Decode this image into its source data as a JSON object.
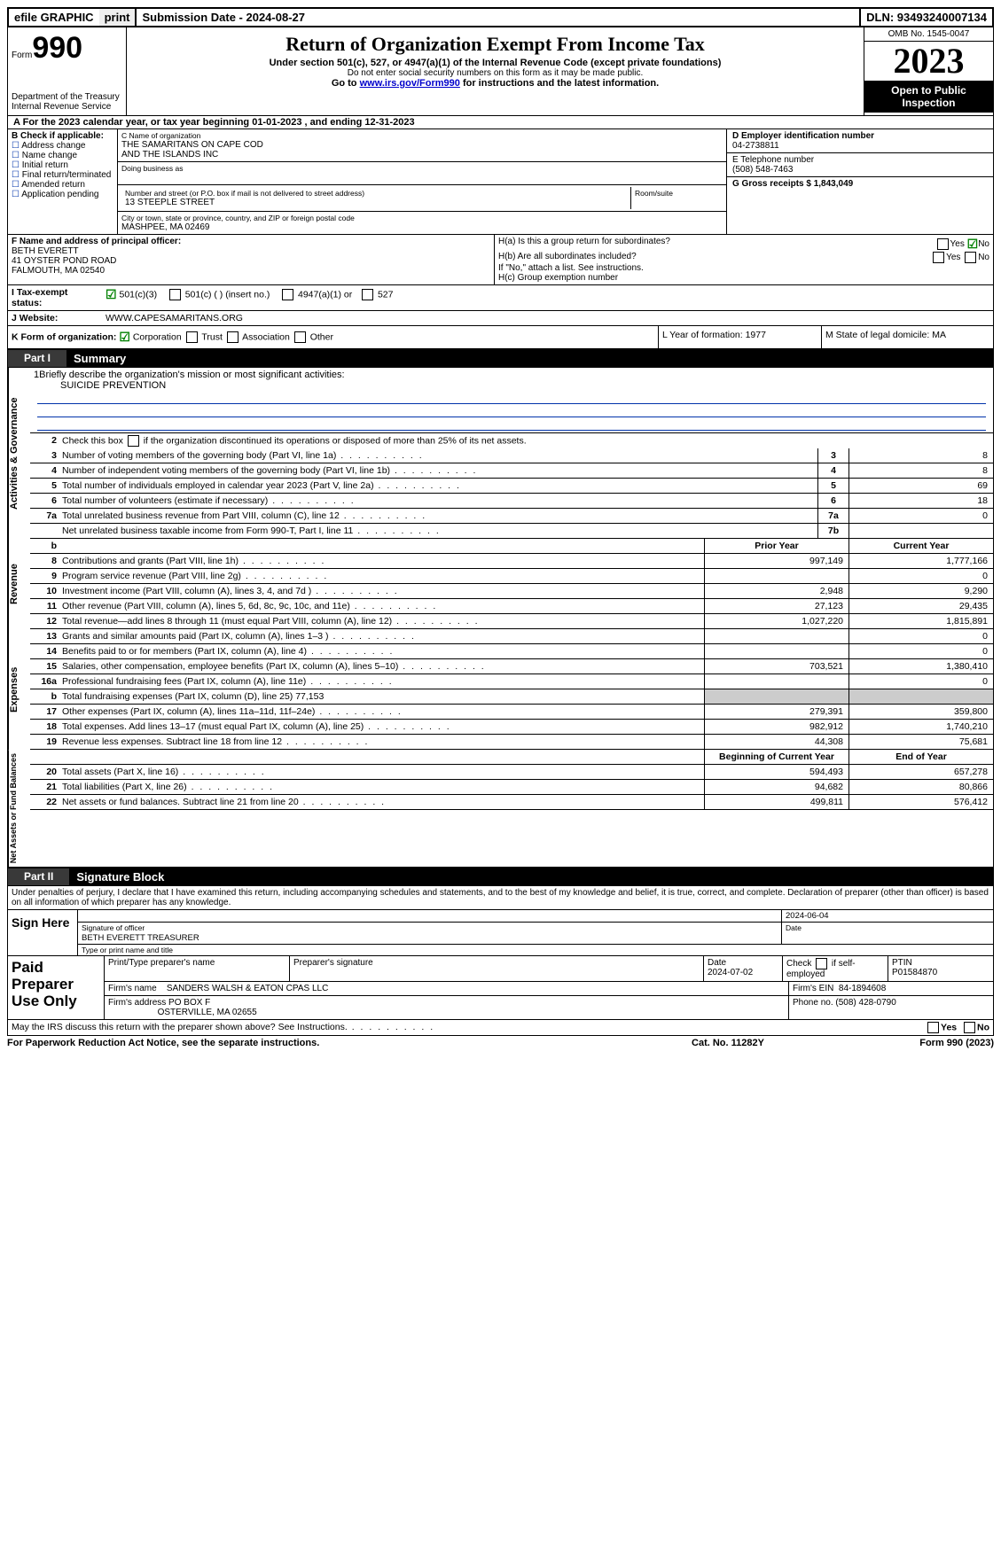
{
  "topbar": {
    "efile": "efile GRAPHIC",
    "print": "print",
    "subdate_label": "Submission Date - 2024-08-27",
    "dln": "DLN: 93493240007134"
  },
  "header": {
    "form_label": "Form",
    "form_num": "990",
    "dept": "Department of the Treasury",
    "irs": "Internal Revenue Service",
    "title": "Return of Organization Exempt From Income Tax",
    "sub1": "Under section 501(c), 527, or 4947(a)(1) of the Internal Revenue Code (except private foundations)",
    "sub2": "Do not enter social security numbers on this form as it may be made public.",
    "sub3_pre": "Go to ",
    "sub3_link": "www.irs.gov/Form990",
    "sub3_post": " for instructions and the latest information.",
    "omb": "OMB No. 1545-0047",
    "year": "2023",
    "inspect": "Open to Public Inspection"
  },
  "lineA": "For the 2023 calendar year, or tax year beginning 01-01-2023    , and ending 12-31-2023",
  "boxB": {
    "label": "B Check if applicable:",
    "opts": [
      "Address change",
      "Name change",
      "Initial return",
      "Final return/terminated",
      "Amended return",
      "Application pending"
    ]
  },
  "boxC": {
    "name_lbl": "C Name of organization",
    "name1": "THE SAMARITANS ON CAPE COD",
    "name2": "AND THE ISLANDS INC",
    "dba_lbl": "Doing business as",
    "street_lbl": "Number and street (or P.O. box if mail is not delivered to street address)",
    "street": "13 STEEPLE STREET",
    "room_lbl": "Room/suite",
    "city_lbl": "City or town, state or province, country, and ZIP or foreign postal code",
    "city": "MASHPEE, MA  02469"
  },
  "boxD": {
    "lbl": "D Employer identification number",
    "val": "04-2738811"
  },
  "boxE": {
    "lbl": "E Telephone number",
    "val": "(508) 548-7463"
  },
  "boxG": {
    "lbl": "G Gross receipts $ 1,843,049"
  },
  "boxF": {
    "lbl": "F  Name and address of principal officer:",
    "l1": "BETH EVERETT",
    "l2": "41 OYSTER POND ROAD",
    "l3": "FALMOUTH, MA  02540"
  },
  "boxH": {
    "a": "H(a)  Is this a group return for subordinates?",
    "b": "H(b)  Are all subordinates included?",
    "bnote": "If \"No,\" attach a list. See instructions.",
    "c": "H(c)  Group exemption number"
  },
  "taxexempt": {
    "lbl": "Tax-exempt status:",
    "opt1": "501(c)(3)",
    "opt2": "501(c) (  ) (insert no.)",
    "opt3": "4947(a)(1) or",
    "opt4": "527"
  },
  "website": {
    "lbl": "Website:",
    "val": "WWW.CAPESAMARITANS.ORG"
  },
  "lineK": "K Form of organization:",
  "lineK_opts": [
    "Corporation",
    "Trust",
    "Association",
    "Other"
  ],
  "lineL": "L Year of formation: 1977",
  "lineM": "M State of legal domicile: MA",
  "part1": {
    "tag": "Part I",
    "title": "Summary"
  },
  "sec_gov": {
    "label": "Activities & Governance",
    "q1": "Briefly describe the organization's mission or most significant activities:",
    "q1ans": "SUICIDE PREVENTION",
    "q2": "Check this box        if the organization discontinued its operations or disposed of more than 25% of its net assets.",
    "rows": [
      {
        "n": "3",
        "d": "Number of voting members of the governing body (Part VI, line 1a)",
        "k": "3",
        "v": "8"
      },
      {
        "n": "4",
        "d": "Number of independent voting members of the governing body (Part VI, line 1b)",
        "k": "4",
        "v": "8"
      },
      {
        "n": "5",
        "d": "Total number of individuals employed in calendar year 2023 (Part V, line 2a)",
        "k": "5",
        "v": "69"
      },
      {
        "n": "6",
        "d": "Total number of volunteers (estimate if necessary)",
        "k": "6",
        "v": "18"
      },
      {
        "n": "7a",
        "d": "Total unrelated business revenue from Part VIII, column (C), line 12",
        "k": "7a",
        "v": "0"
      },
      {
        "n": "",
        "d": "Net unrelated business taxable income from Form 990-T, Part I, line 11",
        "k": "7b",
        "v": ""
      }
    ]
  },
  "sec_rev": {
    "label": "Revenue",
    "hdr_b": "b",
    "col1": "Prior Year",
    "col2": "Current Year",
    "rows": [
      {
        "n": "8",
        "d": "Contributions and grants (Part VIII, line 1h)",
        "v1": "997,149",
        "v2": "1,777,166"
      },
      {
        "n": "9",
        "d": "Program service revenue (Part VIII, line 2g)",
        "v1": "",
        "v2": "0"
      },
      {
        "n": "10",
        "d": "Investment income (Part VIII, column (A), lines 3, 4, and 7d )",
        "v1": "2,948",
        "v2": "9,290"
      },
      {
        "n": "11",
        "d": "Other revenue (Part VIII, column (A), lines 5, 6d, 8c, 9c, 10c, and 11e)",
        "v1": "27,123",
        "v2": "29,435"
      },
      {
        "n": "12",
        "d": "Total revenue—add lines 8 through 11 (must equal Part VIII, column (A), line 12)",
        "v1": "1,027,220",
        "v2": "1,815,891"
      }
    ]
  },
  "sec_exp": {
    "label": "Expenses",
    "rows": [
      {
        "n": "13",
        "d": "Grants and similar amounts paid (Part IX, column (A), lines 1–3 )",
        "v1": "",
        "v2": "0"
      },
      {
        "n": "14",
        "d": "Benefits paid to or for members (Part IX, column (A), line 4)",
        "v1": "",
        "v2": "0"
      },
      {
        "n": "15",
        "d": "Salaries, other compensation, employee benefits (Part IX, column (A), lines 5–10)",
        "v1": "703,521",
        "v2": "1,380,410"
      },
      {
        "n": "16a",
        "d": "Professional fundraising fees (Part IX, column (A), line 11e)",
        "v1": "",
        "v2": "0"
      },
      {
        "n": "b",
        "d": "Total fundraising expenses (Part IX, column (D), line 25) 77,153",
        "v1": "SHADE",
        "v2": "SHADE"
      },
      {
        "n": "17",
        "d": "Other expenses (Part IX, column (A), lines 11a–11d, 11f–24e)",
        "v1": "279,391",
        "v2": "359,800"
      },
      {
        "n": "18",
        "d": "Total expenses. Add lines 13–17 (must equal Part IX, column (A), line 25)",
        "v1": "982,912",
        "v2": "1,740,210"
      },
      {
        "n": "19",
        "d": "Revenue less expenses. Subtract line 18 from line 12",
        "v1": "44,308",
        "v2": "75,681"
      }
    ]
  },
  "sec_net": {
    "label": "Net Assets or Fund Balances",
    "col1": "Beginning of Current Year",
    "col2": "End of Year",
    "rows": [
      {
        "n": "20",
        "d": "Total assets (Part X, line 16)",
        "v1": "594,493",
        "v2": "657,278"
      },
      {
        "n": "21",
        "d": "Total liabilities (Part X, line 26)",
        "v1": "94,682",
        "v2": "80,866"
      },
      {
        "n": "22",
        "d": "Net assets or fund balances. Subtract line 21 from line 20",
        "v1": "499,811",
        "v2": "576,412"
      }
    ]
  },
  "part2": {
    "tag": "Part II",
    "title": "Signature Block"
  },
  "sig_decl": "Under penalties of perjury, I declare that I have examined this return, including accompanying schedules and statements, and to the best of my knowledge and belief, it is true, correct, and complete. Declaration of preparer (other than officer) is based on all information of which preparer has any knowledge.",
  "sign": {
    "side": "Sign Here",
    "date": "2024-06-04",
    "sig_lbl": "Signature of officer",
    "name": "BETH EVERETT  TREASURER",
    "type_lbl": "Type or print name and title",
    "date_lbl": "Date"
  },
  "prep": {
    "side": "Paid Preparer Use Only",
    "c1": "Print/Type preparer's name",
    "c2": "Preparer's signature",
    "c3": "Date",
    "c3v": "2024-07-02",
    "c4a": "Check",
    "c4b": "if self-employed",
    "c5": "PTIN",
    "c5v": "P01584870",
    "firm_lbl": "Firm's name",
    "firm": "SANDERS WALSH & EATON CPAS LLC",
    "ein_lbl": "Firm's EIN",
    "ein": "84-1894608",
    "addr_lbl": "Firm's address",
    "addr1": "PO BOX F",
    "addr2": "OSTERVILLE, MA  02655",
    "phone_lbl": "Phone no.",
    "phone": "(508) 428-0790"
  },
  "discuss": "May the IRS discuss this return with the preparer shown above? See Instructions.",
  "yes": "Yes",
  "no": "No",
  "footer": {
    "l": "For Paperwork Reduction Act Notice, see the separate instructions.",
    "c": "Cat. No. 11282Y",
    "r": "Form 990 (2023)"
  }
}
